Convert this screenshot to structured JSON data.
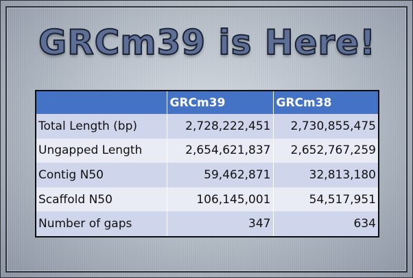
{
  "title": "GRCm39 is Here!",
  "table": {
    "columns": [
      "",
      "GRCm39",
      "GRCm38"
    ],
    "rows": [
      {
        "label": "Total Length (bp)",
        "grcm39": "2,728,222,451",
        "grcm38": "2,730,855,475"
      },
      {
        "label": "Ungapped Length",
        "grcm39": "2,654,621,837",
        "grcm38": "2,652,767,259"
      },
      {
        "label": "Contig N50",
        "grcm39": "59,462,871",
        "grcm38": "32,813,180"
      },
      {
        "label": "Scaffold N50",
        "grcm39": "106,145,001",
        "grcm38": "54,517,951"
      },
      {
        "label": "Number of gaps",
        "grcm39": "347",
        "grcm38": "634"
      }
    ]
  },
  "colors": {
    "header_blue": "#4472c4",
    "band_dark": "#cfd5ea",
    "band_light": "#e9ebf5",
    "title_fill": "#5d6f96"
  }
}
